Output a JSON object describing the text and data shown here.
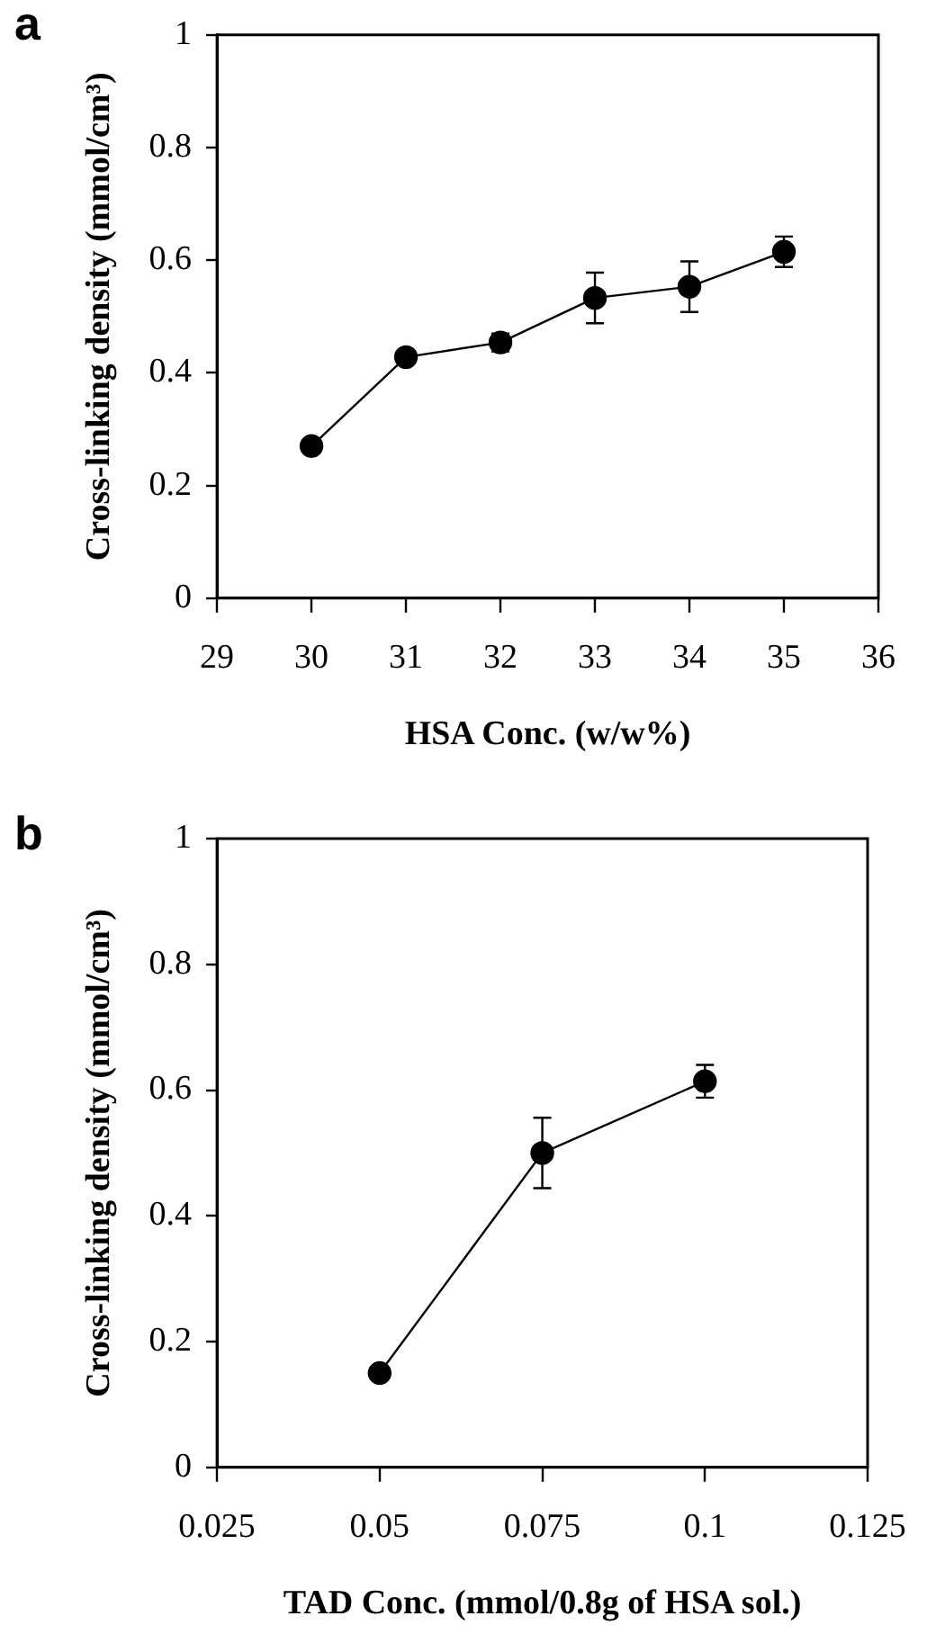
{
  "chart_data": [
    {
      "type": "line",
      "annotations": [
        "a"
      ],
      "xlabel": "HSA Conc. (w/w%)",
      "ylabel": "Cross-linking density (mmol/cm³)",
      "x": [
        30,
        31,
        32,
        33,
        34,
        35
      ],
      "values": [
        0.27,
        0.428,
        0.454,
        0.533,
        0.553,
        0.615
      ],
      "errors": [
        null,
        null,
        0.016,
        0.045,
        0.045,
        0.027
      ],
      "color": "#000000",
      "marker": "circle",
      "grid": false,
      "legend": false,
      "xlim": [
        29,
        36
      ],
      "xticks": [
        29,
        30,
        31,
        32,
        33,
        34,
        35,
        36
      ],
      "ylim": [
        0,
        1
      ],
      "yticks": [
        0,
        0.2,
        0.4,
        0.6,
        0.8,
        1
      ]
    },
    {
      "type": "line",
      "annotations": [
        "b"
      ],
      "xlabel": "TAD Conc. (mmol/0.8g of HSA sol.)",
      "ylabel": "Cross-linking density (mmol/cm³)",
      "x": [
        0.05,
        0.075,
        0.1
      ],
      "values": [
        0.15,
        0.5,
        0.614
      ],
      "errors": [
        null,
        0.056,
        0.026
      ],
      "color": "#000000",
      "marker": "circle",
      "grid": false,
      "legend": false,
      "xlim": [
        0.025,
        0.125
      ],
      "xticks": [
        0.025,
        0.05,
        0.075,
        0.1,
        0.125
      ],
      "ylim": [
        0,
        1
      ],
      "yticks": [
        0,
        0.2,
        0.4,
        0.6,
        0.8,
        1
      ]
    }
  ]
}
